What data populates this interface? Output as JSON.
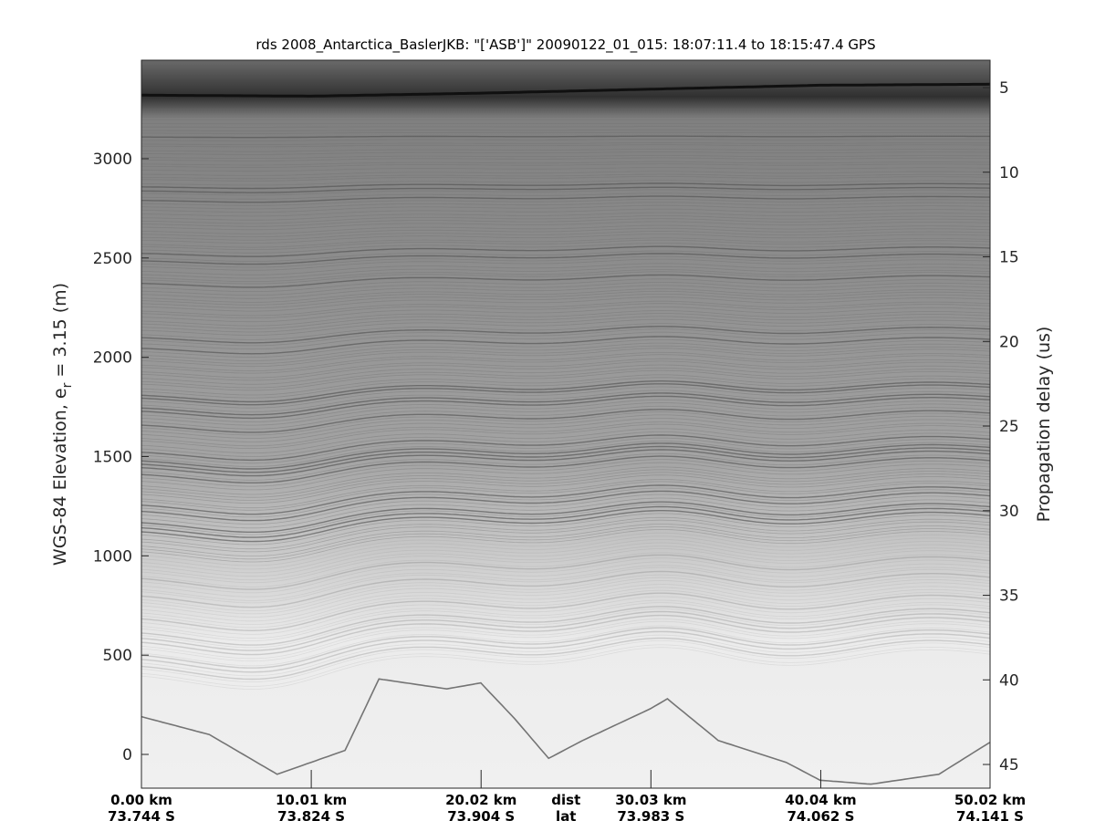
{
  "chart_data": {
    "type": "heatmap",
    "title": "rds 2008_Antarctica_BaslerJKB: \"['ASB']\"  20090122_01_015: 18:07:11.4 to 18:15:47.4 GPS",
    "ylabel_left": "WGS-84 Elevation, e",
    "ylabel_left_sub": "r",
    "ylabel_left_suffix": " = 3.15 (m)",
    "ylabel_right": "Propagation delay (us)",
    "colormap": "gray",
    "y_left_range": [
      -170,
      3496
    ],
    "y_left_ticks": [
      0,
      500,
      1000,
      1500,
      2000,
      2500,
      3000
    ],
    "y_right_range": [
      3.38,
      46.4
    ],
    "y_right_ticks": [
      5,
      10,
      15,
      20,
      25,
      30,
      35,
      40,
      45
    ],
    "x_range_km": [
      0,
      50.02
    ],
    "x_ticks": [
      {
        "dist": "0.00 km",
        "lat": "73.744 S",
        "km": 0
      },
      {
        "dist": "10.01 km",
        "lat": "73.824 S",
        "km": 10.01
      },
      {
        "dist": "20.02 km",
        "lat": "73.904 S",
        "km": 20.02
      },
      {
        "dist": "30.03 km",
        "lat": "73.983 S",
        "km": 30.03
      },
      {
        "dist": "40.04 km",
        "lat": "74.062 S",
        "km": 40.04
      },
      {
        "dist": "50.02 km",
        "lat": "74.141 S",
        "km": 50.02
      }
    ],
    "x_row_labels": {
      "dist": "dist",
      "lat": "lat"
    },
    "surface_elevation_m": [
      [
        0,
        3320
      ],
      [
        10,
        3315
      ],
      [
        20,
        3330
      ],
      [
        30,
        3350
      ],
      [
        40,
        3370
      ],
      [
        50,
        3375
      ]
    ],
    "bed_elevation_m": [
      [
        0,
        190
      ],
      [
        4,
        100
      ],
      [
        8,
        -100
      ],
      [
        12,
        20
      ],
      [
        14,
        380
      ],
      [
        18,
        330
      ],
      [
        20,
        360
      ],
      [
        22,
        180
      ],
      [
        24,
        -20
      ],
      [
        26,
        70
      ],
      [
        30,
        230
      ],
      [
        31,
        280
      ],
      [
        34,
        70
      ],
      [
        38,
        -40
      ],
      [
        40,
        -130
      ],
      [
        43,
        -150
      ],
      [
        47,
        -100
      ],
      [
        50,
        60
      ]
    ]
  }
}
